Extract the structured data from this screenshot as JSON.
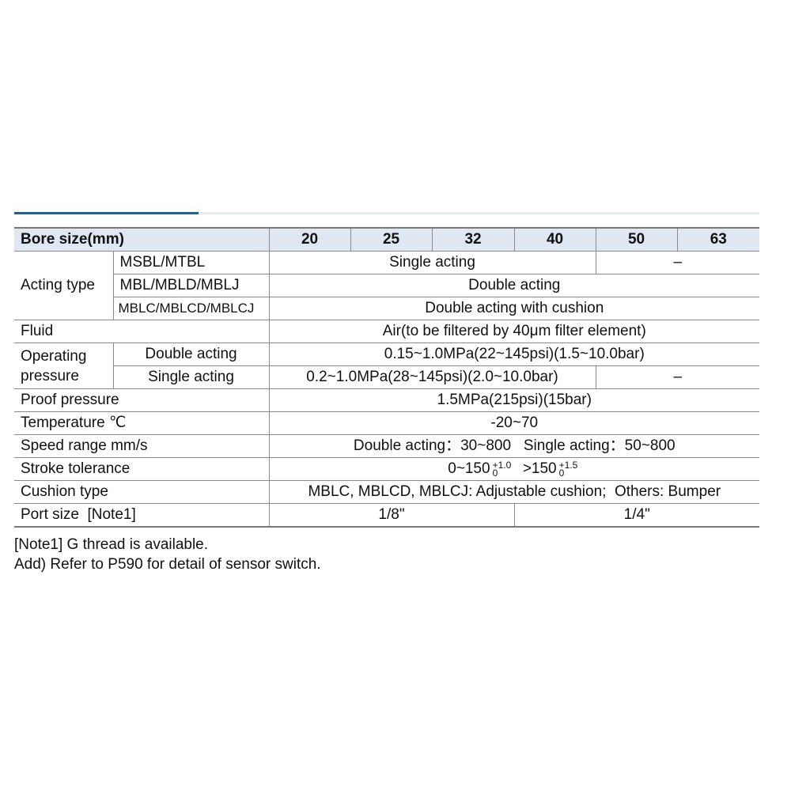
{
  "header": {
    "label": "Bore size(mm)",
    "bores": [
      "20",
      "25",
      "32",
      "40",
      "50",
      "63"
    ]
  },
  "acting": {
    "label": "Acting type",
    "rows": [
      {
        "model": "MSBL/MTBL",
        "value": "Single acting",
        "value_large": "–"
      },
      {
        "model": "MBL/MBLD/MBLJ",
        "value": "Double acting"
      },
      {
        "model": "MBLC/MBLCD/MBLCJ",
        "value": "Double acting with cushion"
      }
    ]
  },
  "fluid": {
    "label": "Fluid",
    "value": "Air(to be filtered by 40μm filter element)"
  },
  "operating": {
    "label": "Operating pressure",
    "rows": [
      {
        "type": "Double acting",
        "value": "0.15~1.0MPa(22~145psi)(1.5~10.0bar)"
      },
      {
        "type": "Single acting",
        "value": "0.2~1.0MPa(28~145psi)(2.0~10.0bar)",
        "value_large": "–"
      }
    ]
  },
  "proof": {
    "label": "Proof pressure",
    "value": "1.5MPa(215psi)(15bar)"
  },
  "temperature": {
    "label": "Temperature ℃",
    "value": "-20~70"
  },
  "speed": {
    "label": "Speed range mm/s",
    "value": "Double acting：30~800   Single acting：50~800"
  },
  "stroke": {
    "label": "Stroke tolerance",
    "a": "0~150",
    "a_up": "+1.0",
    "a_low": "0",
    "b": ">150",
    "b_up": "+1.5",
    "b_low": "0"
  },
  "cushion": {
    "label": "Cushion type",
    "value": "MBLC, MBLCD, MBLCJ: Adjustable cushion;  Others: Bumper"
  },
  "port": {
    "label": "Port size  [Note1]",
    "small": "1/8\"",
    "large": "1/4\""
  },
  "notes": [
    "[Note1] G thread is available.",
    "Add) Refer to P590 for detail of sensor switch."
  ]
}
